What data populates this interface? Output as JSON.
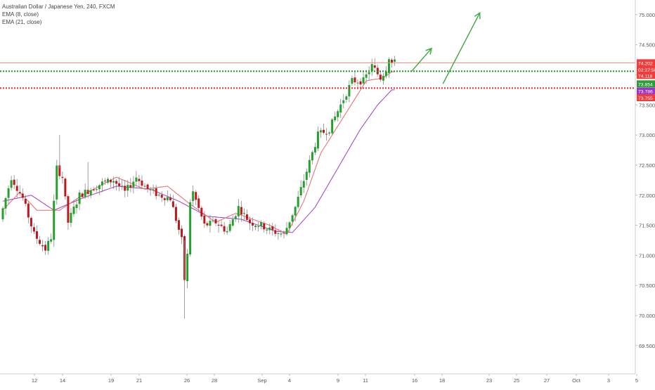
{
  "legend": {
    "symbol": "Australian Dollar / Japanese Yen, 240, FXCM",
    "ema_fast": "EMA (8, close)",
    "ema_slow": "EMA (21, close)"
  },
  "colors": {
    "up": "#21a22b",
    "down": "#c3161c",
    "ema_fast": "#e8686c",
    "ema_slow": "#a23cc0",
    "resistance": "#f08a6a",
    "support_green": "#1f8a2a",
    "support_red": "#d92b2b",
    "arrow": "#3aa83f",
    "price_tag": "#ef3c3c",
    "green_tag": "#2e9b3a",
    "purple_tag": "#9b34c4"
  },
  "price_tags": [
    {
      "label": "74.202",
      "price": 74.2,
      "color": "#ef3c3c"
    },
    {
      "label": "02:27:50",
      "price": 74.09,
      "color": "#ef3c3c"
    },
    {
      "label": "74.118",
      "price": 73.99,
      "color": "#ef3c3c"
    },
    {
      "label": "73.854",
      "price": 73.85,
      "color": "#2e9b3a"
    },
    {
      "label": "73.786",
      "price": 73.73,
      "color": "#9b34c4"
    },
    {
      "label": "73.755",
      "price": 73.62,
      "color": "#ef3c3c"
    }
  ],
  "chart_data": {
    "type": "candlestick",
    "ylim": [
      69.3,
      75.08
    ],
    "y_ticks": [
      "75.000",
      "74.500",
      "74.000",
      "73.500",
      "73.000",
      "72.500",
      "72.000",
      "71.500",
      "71.000",
      "70.500",
      "70.000",
      "69.500"
    ],
    "x_ticks": [
      "12",
      "14",
      "19",
      "21",
      "26",
      "28",
      "Sep",
      "4",
      "9",
      "11",
      "16",
      "18",
      "23",
      "25",
      "27",
      "Oct",
      "3",
      "5"
    ],
    "levels": [
      {
        "name": "resistance",
        "price": 74.2,
        "style": "solid"
      },
      {
        "name": "support-green",
        "price": 74.06,
        "style": "dotted"
      },
      {
        "name": "support-red",
        "price": 73.78,
        "style": "dotted"
      }
    ],
    "projection_arrows": [
      {
        "from": [
          155,
          73.85
        ],
        "to": [
          168,
          75.03
        ]
      },
      {
        "from": [
          144,
          74.06
        ],
        "to": [
          151,
          74.44
        ]
      }
    ],
    "ema_fast_anchors": [
      [
        0,
        71.75
      ],
      [
        6,
        72.05
      ],
      [
        12,
        71.75
      ],
      [
        20,
        71.75
      ],
      [
        28,
        72.0
      ],
      [
        40,
        72.3
      ],
      [
        50,
        72.1
      ],
      [
        58,
        72.15
      ],
      [
        66,
        71.85
      ],
      [
        75,
        71.55
      ],
      [
        82,
        71.7
      ],
      [
        94,
        71.5
      ],
      [
        100,
        71.35
      ],
      [
        106,
        71.9
      ],
      [
        112,
        72.7
      ],
      [
        120,
        73.3
      ],
      [
        128,
        73.9
      ],
      [
        134,
        73.95
      ],
      [
        137,
        74.05
      ]
    ],
    "ema_slow_anchors": [
      [
        0,
        71.9
      ],
      [
        10,
        72.0
      ],
      [
        18,
        71.75
      ],
      [
        28,
        71.95
      ],
      [
        40,
        72.15
      ],
      [
        52,
        72.1
      ],
      [
        62,
        71.9
      ],
      [
        72,
        71.65
      ],
      [
        84,
        71.6
      ],
      [
        96,
        71.4
      ],
      [
        102,
        71.38
      ],
      [
        110,
        71.8
      ],
      [
        118,
        72.45
      ],
      [
        126,
        73.1
      ],
      [
        132,
        73.5
      ],
      [
        137,
        73.75
      ]
    ],
    "price_path": [
      [
        0,
        71.6
      ],
      [
        4,
        72.3
      ],
      [
        8,
        71.95
      ],
      [
        12,
        71.35
      ],
      [
        16,
        71.1
      ],
      [
        18,
        71.3
      ],
      [
        20,
        72.45
      ],
      [
        22,
        72.3
      ],
      [
        24,
        71.55
      ],
      [
        28,
        72.0
      ],
      [
        32,
        72.1
      ],
      [
        36,
        72.2
      ],
      [
        40,
        72.25
      ],
      [
        44,
        72.05
      ],
      [
        48,
        72.3
      ],
      [
        52,
        72.1
      ],
      [
        56,
        72.0
      ],
      [
        60,
        71.95
      ],
      [
        64,
        71.25
      ],
      [
        65,
        70.6
      ],
      [
        66,
        71.0
      ],
      [
        67,
        71.9
      ],
      [
        68,
        72.05
      ],
      [
        72,
        71.5
      ],
      [
        76,
        71.55
      ],
      [
        80,
        71.4
      ],
      [
        84,
        71.8
      ],
      [
        88,
        71.55
      ],
      [
        92,
        71.5
      ],
      [
        96,
        71.4
      ],
      [
        100,
        71.35
      ],
      [
        104,
        71.8
      ],
      [
        108,
        72.4
      ],
      [
        112,
        73.0
      ],
      [
        116,
        73.1
      ],
      [
        120,
        73.5
      ],
      [
        124,
        73.9
      ],
      [
        128,
        73.9
      ],
      [
        131,
        74.15
      ],
      [
        134,
        73.95
      ],
      [
        136,
        74.1
      ],
      [
        137,
        74.3
      ],
      [
        138,
        74.2
      ]
    ]
  }
}
